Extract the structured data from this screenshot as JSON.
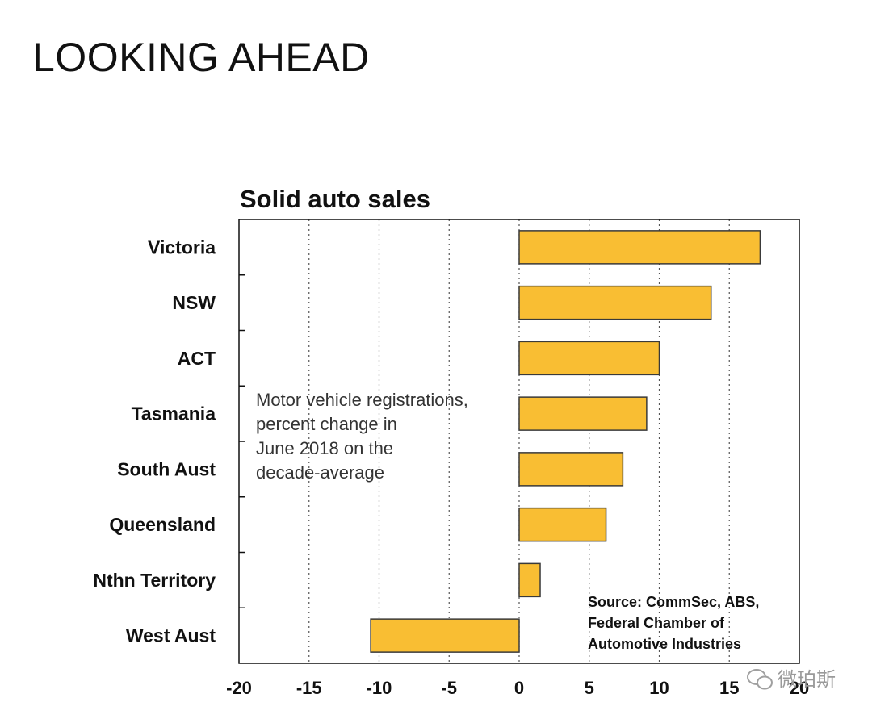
{
  "page": {
    "title": "LOOKING AHEAD"
  },
  "chart_data": {
    "type": "bar",
    "orientation": "horizontal",
    "title": "Solid auto sales",
    "categories": [
      "Victoria",
      "NSW",
      "ACT",
      "Tasmania",
      "South Aust",
      "Queensland",
      "Nthn Territory",
      "West Aust"
    ],
    "values": [
      17.2,
      13.7,
      10.0,
      9.1,
      7.4,
      6.2,
      1.5,
      -10.6
    ],
    "xlim": [
      -20,
      20
    ],
    "xticks": [
      -20,
      -15,
      -10,
      -5,
      0,
      5,
      10,
      15,
      20
    ],
    "xtick_labels": [
      "-20",
      "-15",
      "-10",
      "-5",
      "0",
      "5",
      "10",
      "15",
      "20"
    ],
    "grid": "vertical dotted",
    "bar_color": "#F9BE33",
    "bar_edge_color": "#3a3a3a",
    "annotation": [
      "Motor vehicle registrations,",
      "percent change in",
      "June 2018 on the",
      "decade-average"
    ],
    "source": [
      "Source: CommSec, ABS,",
      "Federal Chamber of",
      "Automotive Industries"
    ]
  },
  "watermark": {
    "text": "微珀斯",
    "icon": "wechat-icon"
  }
}
